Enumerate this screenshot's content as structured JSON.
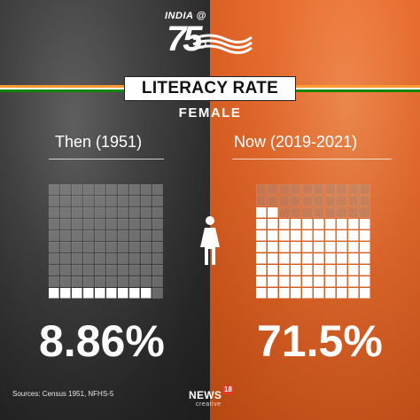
{
  "logo": {
    "top_text": "INDIA @",
    "number": "75"
  },
  "header": {
    "title": "LITERACY RATE",
    "subtitle": "FEMALE"
  },
  "colors": {
    "left_panel": "#3a3a3a",
    "right_panel": "#e8692a",
    "saffron": "#ff9933",
    "green": "#138808",
    "filled_cell": "#ffffff",
    "empty_cell": "#9a9a9a"
  },
  "icons": {
    "center": "woman-icon"
  },
  "chart_data": {
    "type": "waffle",
    "grid": {
      "rows": 10,
      "cols": 10,
      "total_cells": 100
    },
    "series": [
      {
        "period": "Then (1951)",
        "value": 8.86,
        "label": "8.86%"
      },
      {
        "period": "Now (2019-2021)",
        "value": 71.5,
        "label": "71.5%"
      }
    ]
  },
  "footer": {
    "sources": "Sources: Census 1951, NFHS-5",
    "brand_main": "NEWS",
    "brand_sup": "18",
    "brand_sub": "creative"
  }
}
